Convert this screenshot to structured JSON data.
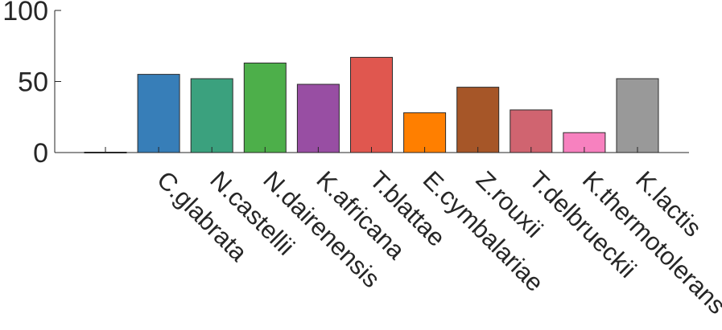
{
  "chart_data": {
    "type": "bar",
    "title": "",
    "xlabel": "",
    "ylabel": "",
    "ylim": [
      0,
      100
    ],
    "yticks": [
      0,
      50,
      100
    ],
    "categories": [
      "",
      "C.glabrata",
      "N.castellii",
      "N.dairenensis",
      "K.africana",
      "T.blattae",
      "E.cymbalariae",
      "Z.rouxii",
      "T.delbrueckii",
      "K.thermotolerans",
      "K.lactis"
    ],
    "values": [
      0,
      55,
      52,
      63,
      48,
      67,
      28,
      46,
      30,
      14,
      52
    ],
    "colors": [
      "#808080",
      "#377eb8",
      "#3ba17e",
      "#4daf4a",
      "#984ea3",
      "#e0574f",
      "#ff7f00",
      "#a65628",
      "#d06470",
      "#f781bf",
      "#999999"
    ],
    "grid": false,
    "legend": "none"
  }
}
